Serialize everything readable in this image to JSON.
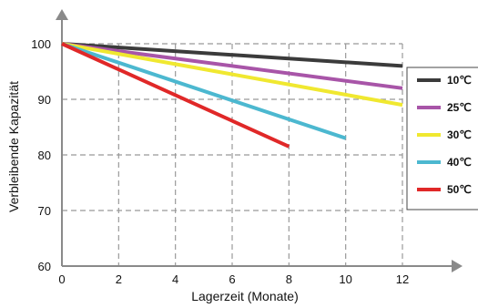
{
  "chart_data": {
    "type": "line",
    "xlabel": "Lagerzeit (Monate)",
    "ylabel": "Verbleibende Kapazität",
    "xlim": [
      0,
      12
    ],
    "ylim": [
      60,
      100
    ],
    "x_ticks": [
      "0",
      "2",
      "4",
      "6",
      "8",
      "10",
      "12"
    ],
    "y_ticks": [
      "60",
      "70",
      "80",
      "90",
      "100"
    ],
    "grid": true,
    "legend_position": "right",
    "series": [
      {
        "name": "10℃",
        "color": "#3b3b3b",
        "x": [
          0,
          12
        ],
        "y": [
          100,
          96
        ]
      },
      {
        "name": "25℃",
        "color": "#a855a8",
        "x": [
          0,
          12
        ],
        "y": [
          100,
          92
        ]
      },
      {
        "name": "30℃",
        "color": "#f0e830",
        "x": [
          0,
          12
        ],
        "y": [
          100,
          89
        ]
      },
      {
        "name": "40℃",
        "color": "#4cb8d0",
        "x": [
          0,
          10
        ],
        "y": [
          100,
          83
        ]
      },
      {
        "name": "50℃",
        "color": "#e02828",
        "x": [
          0,
          8
        ],
        "y": [
          100,
          81.5
        ]
      }
    ]
  }
}
